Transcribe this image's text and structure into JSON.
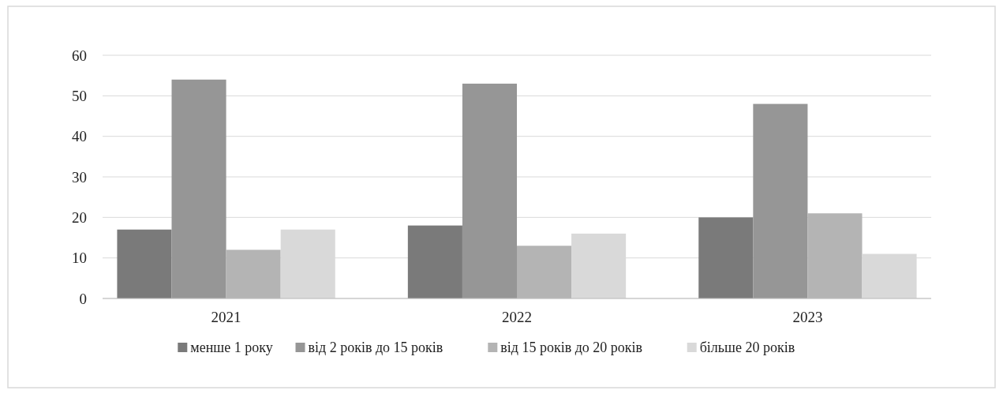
{
  "chart_data": {
    "type": "bar",
    "categories": [
      "2021",
      "2022",
      "2023"
    ],
    "series": [
      {
        "name": "менше 1 року",
        "color": "#7a7a7a",
        "values": [
          17,
          18,
          20
        ]
      },
      {
        "name": "від 2 років до 15 років",
        "color": "#969696",
        "values": [
          54,
          53,
          48
        ]
      },
      {
        "name": "від 15 років до 20 років",
        "color": "#b4b4b4",
        "values": [
          12,
          13,
          21
        ]
      },
      {
        "name": "більше 20 років",
        "color": "#d9d9d9",
        "values": [
          17,
          16,
          11
        ]
      }
    ],
    "ylim": [
      0,
      60
    ],
    "yticks": [
      0,
      10,
      20,
      30,
      40,
      50,
      60
    ],
    "grid": "y",
    "legend": "bottom"
  }
}
